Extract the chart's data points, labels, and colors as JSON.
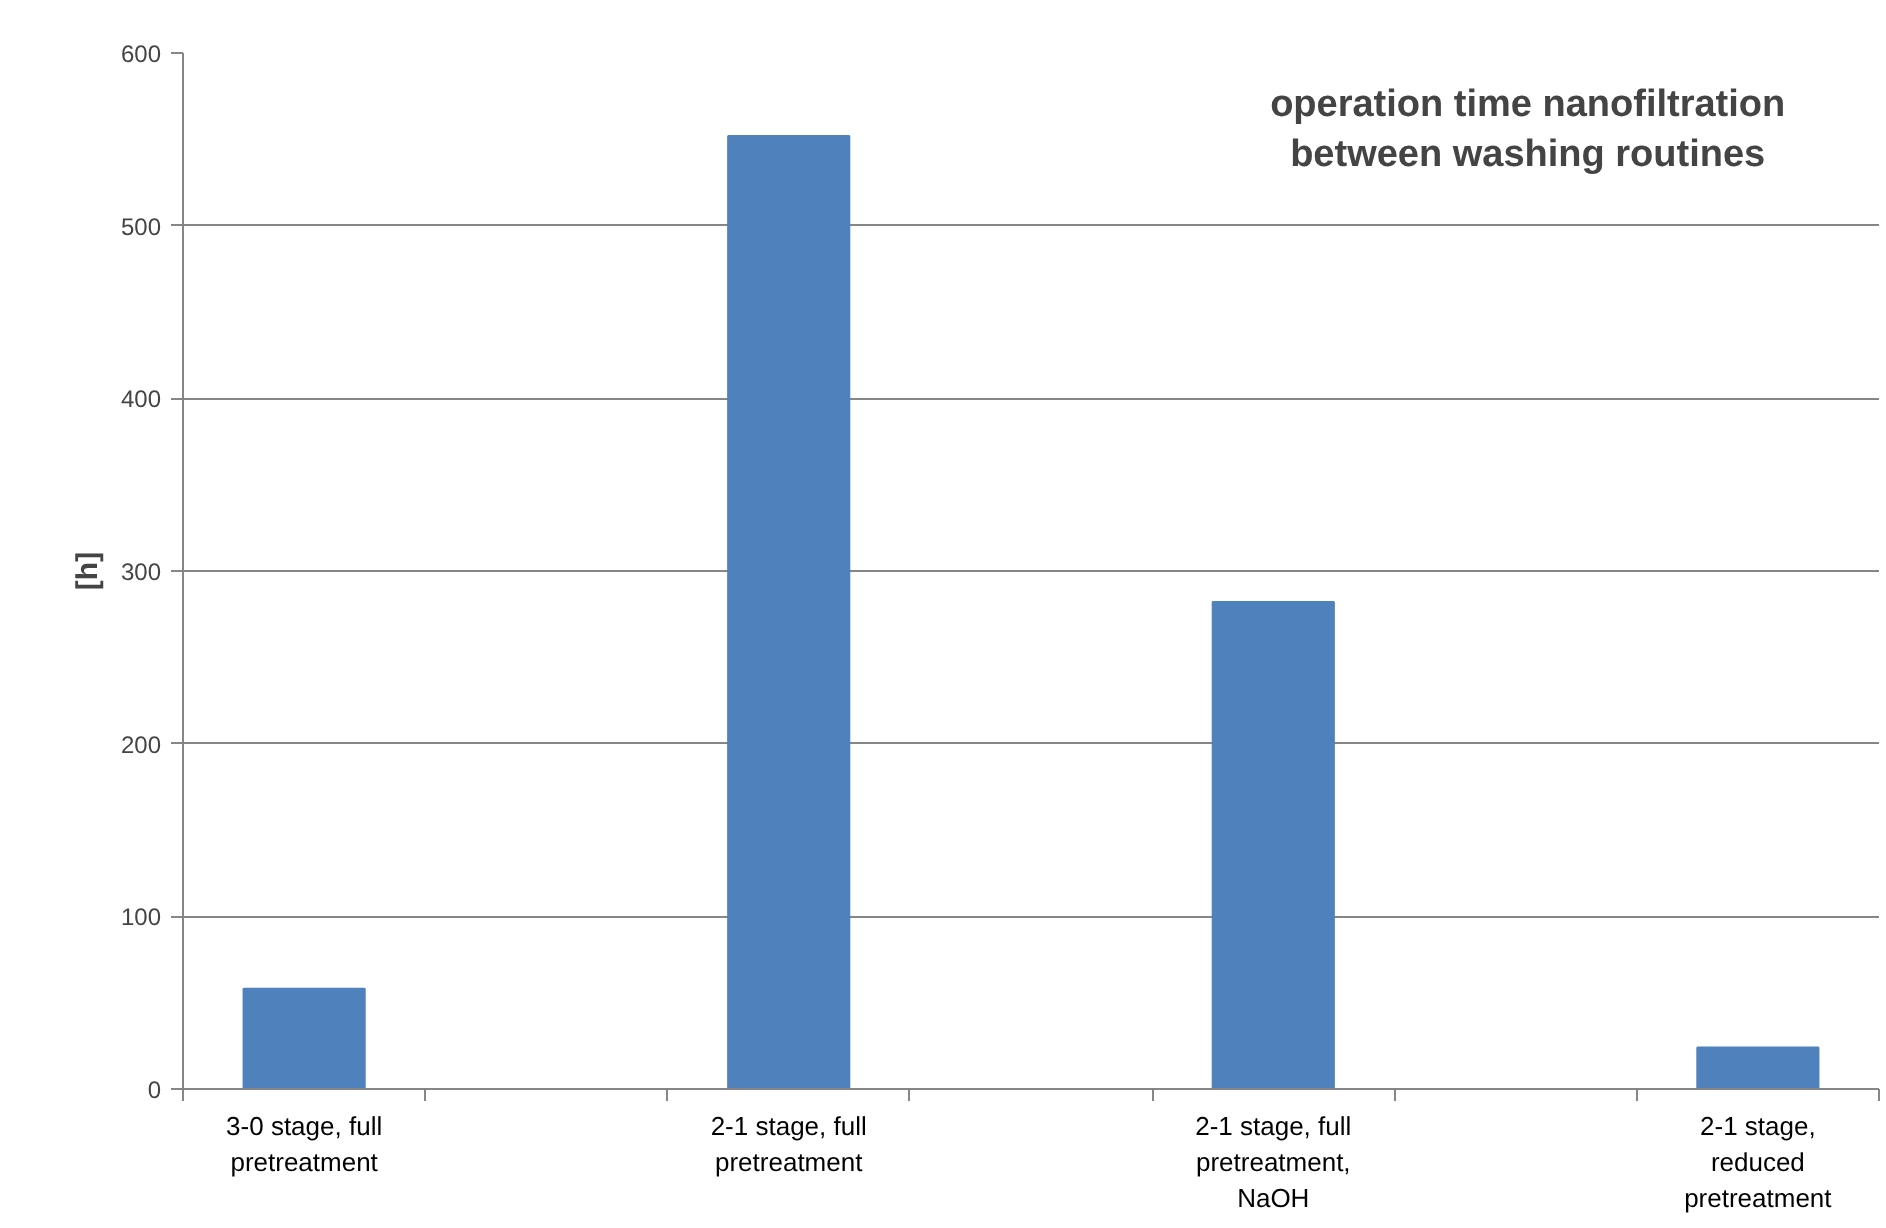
{
  "chart_data": {
    "type": "bar",
    "title": "operation time nanofiltration between washing routines",
    "ylabel": "[h]",
    "categories": [
      "3-0 stage, full pretreatment",
      null,
      "2-1 stage, full pretreatment",
      null,
      "2-1 stage, full pretreatment, NaOH",
      null,
      "2-1 stage, reduced pretreatment"
    ],
    "values": [
      58,
      null,
      552,
      null,
      282,
      null,
      24
    ],
    "color": "#4f81bd",
    "ylim": [
      0,
      600
    ],
    "yticks": [
      0,
      100,
      200,
      300,
      400,
      500,
      600
    ],
    "grid": "y"
  }
}
